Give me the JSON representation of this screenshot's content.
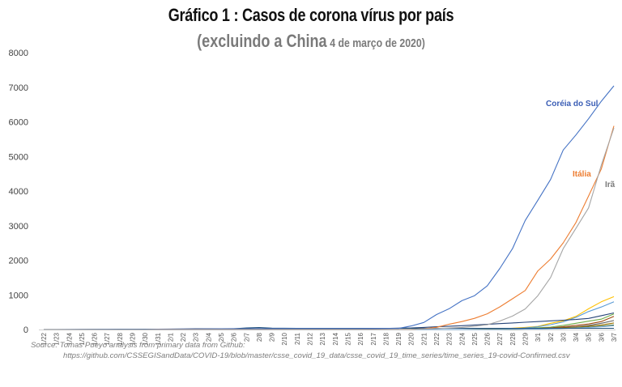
{
  "title": "Gráfico 1 : Casos de corona vírus por país",
  "subtitle_main": "(excluindo a China",
  "subtitle_date": "4 de março de 2020)",
  "source_line1": "Source: Tomas Pueyo analysis from primary data from Github:",
  "source_line2": "https://github.com/CSSEGISandData/COVID-19/blob/master/csse_covid_19_data/csse_covid_19_time_series/time_series_19-covid-Confirmed.csv",
  "chart_data": {
    "type": "line",
    "ylim": [
      0,
      8000
    ],
    "yticks": [
      0,
      1000,
      2000,
      3000,
      4000,
      5000,
      6000,
      7000,
      8000
    ],
    "grid": false,
    "categories": [
      "1/22",
      "1/23",
      "1/24",
      "1/25",
      "1/26",
      "1/27",
      "1/28",
      "1/29",
      "1/30",
      "1/31",
      "2/1",
      "2/2",
      "2/3",
      "2/4",
      "2/5",
      "2/6",
      "2/7",
      "2/8",
      "2/9",
      "2/10",
      "2/11",
      "2/12",
      "2/13",
      "2/14",
      "2/15",
      "2/16",
      "2/17",
      "2/18",
      "2/19",
      "2/20",
      "2/21",
      "2/22",
      "2/23",
      "2/24",
      "2/25",
      "2/26",
      "2/27",
      "2/28",
      "2/29",
      "3/1",
      "3/2",
      "3/3",
      "3/4",
      "3/5",
      "3/6",
      "3/7"
    ],
    "series": [
      {
        "name": "Coréia do Sul",
        "color": "#4472c4",
        "label_color": "#3a5db5",
        "values": [
          1,
          1,
          2,
          2,
          3,
          4,
          4,
          4,
          4,
          11,
          12,
          15,
          15,
          16,
          19,
          23,
          24,
          24,
          25,
          27,
          28,
          28,
          28,
          28,
          28,
          29,
          30,
          31,
          31,
          104,
          204,
          433,
          602,
          833,
          977,
          1261,
          1766,
          2337,
          3150,
          3736,
          4335,
          5186,
          5621,
          6088,
          6593,
          7041
        ]
      },
      {
        "name": "Itália",
        "color": "#ed7d31",
        "label_color": "#ed7d31",
        "values": [
          0,
          0,
          0,
          0,
          0,
          0,
          0,
          0,
          0,
          2,
          2,
          2,
          2,
          2,
          2,
          2,
          3,
          3,
          3,
          3,
          3,
          3,
          3,
          3,
          3,
          3,
          3,
          3,
          3,
          3,
          20,
          62,
          155,
          229,
          322,
          453,
          655,
          888,
          1128,
          1694,
          2036,
          2502,
          3089,
          3858,
          4636,
          5883
        ]
      },
      {
        "name": "Irã",
        "color": "#a5a5a5",
        "label_color": "#7a7a7a",
        "values": [
          0,
          0,
          0,
          0,
          0,
          0,
          0,
          0,
          0,
          0,
          0,
          0,
          0,
          0,
          0,
          0,
          0,
          0,
          0,
          0,
          0,
          0,
          0,
          0,
          0,
          0,
          0,
          0,
          2,
          5,
          18,
          28,
          43,
          61,
          95,
          139,
          245,
          388,
          593,
          978,
          1501,
          2336,
          2922,
          3513,
          4747,
          5823
        ]
      },
      {
        "color": "#ffc000",
        "values": [
          0,
          0,
          0,
          0,
          0,
          0,
          0,
          0,
          0,
          0,
          0,
          0,
          0,
          0,
          0,
          0,
          0,
          0,
          0,
          0,
          0,
          0,
          0,
          0,
          0,
          0,
          0,
          0,
          0,
          0,
          0,
          0,
          0,
          1,
          2,
          6,
          15,
          37,
          60,
          90,
          180,
          250,
          380,
          600,
          800,
          950
        ]
      },
      {
        "color": "#5b9bd5",
        "values": [
          0,
          0,
          0,
          0,
          0,
          0,
          0,
          0,
          0,
          0,
          0,
          0,
          0,
          0,
          0,
          0,
          0,
          0,
          0,
          0,
          0,
          0,
          0,
          0,
          0,
          0,
          0,
          0,
          0,
          0,
          0,
          0,
          0,
          1,
          3,
          5,
          9,
          20,
          45,
          80,
          140,
          220,
          350,
          520,
          650,
          800
        ]
      },
      {
        "color": "#70ad47",
        "values": [
          0,
          0,
          0,
          0,
          0,
          0,
          0,
          0,
          0,
          0,
          0,
          0,
          0,
          0,
          0,
          0,
          0,
          0,
          0,
          0,
          0,
          0,
          0,
          0,
          0,
          0,
          0,
          0,
          0,
          0,
          0,
          0,
          0,
          0,
          1,
          3,
          10,
          20,
          30,
          50,
          70,
          120,
          180,
          240,
          300,
          450
        ]
      },
      {
        "color": "#264478",
        "values": [
          2,
          2,
          2,
          4,
          4,
          5,
          7,
          7,
          9,
          12,
          15,
          17,
          20,
          20,
          22,
          25,
          25,
          25,
          26,
          26,
          26,
          26,
          26,
          26,
          26,
          26,
          26,
          30,
          40,
          45,
          60,
          80,
          95,
          110,
          130,
          150,
          170,
          190,
          210,
          230,
          250,
          270,
          290,
          320,
          400,
          480
        ]
      },
      {
        "color": "#9e480e",
        "values": [
          0,
          0,
          0,
          0,
          0,
          0,
          0,
          0,
          0,
          0,
          0,
          0,
          0,
          0,
          0,
          0,
          0,
          0,
          0,
          0,
          0,
          0,
          0,
          0,
          0,
          0,
          0,
          0,
          0,
          0,
          0,
          0,
          0,
          0,
          0,
          1,
          3,
          8,
          15,
          30,
          50,
          80,
          120,
          160,
          230,
          380
        ]
      },
      {
        "color": "#636363",
        "values": [
          0,
          0,
          0,
          0,
          0,
          0,
          0,
          0,
          0,
          0,
          0,
          0,
          0,
          0,
          0,
          0,
          0,
          0,
          0,
          0,
          0,
          0,
          0,
          0,
          0,
          0,
          0,
          0,
          0,
          0,
          0,
          0,
          0,
          1,
          2,
          4,
          8,
          14,
          20,
          30,
          40,
          55,
          80,
          120,
          180,
          260
        ]
      },
      {
        "color": "#997300",
        "values": [
          0,
          0,
          0,
          0,
          0,
          0,
          0,
          0,
          0,
          0,
          0,
          0,
          0,
          0,
          0,
          0,
          0,
          0,
          0,
          0,
          0,
          0,
          0,
          0,
          0,
          0,
          0,
          0,
          0,
          0,
          0,
          0,
          0,
          0,
          1,
          2,
          5,
          10,
          18,
          25,
          35,
          50,
          70,
          95,
          130,
          190
        ]
      },
      {
        "color": "#43682b",
        "values": [
          0,
          0,
          0,
          0,
          0,
          0,
          0,
          0,
          0,
          0,
          0,
          0,
          0,
          0,
          0,
          0,
          0,
          0,
          0,
          0,
          0,
          0,
          0,
          0,
          0,
          0,
          0,
          0,
          0,
          0,
          0,
          0,
          0,
          1,
          2,
          3,
          5,
          8,
          12,
          18,
          25,
          35,
          50,
          70,
          95,
          130
        ]
      },
      {
        "color": "#7cafdd",
        "values": [
          0,
          0,
          0,
          0,
          0,
          0,
          0,
          0,
          0,
          0,
          0,
          0,
          0,
          0,
          0,
          0,
          0,
          0,
          0,
          0,
          0,
          0,
          0,
          0,
          0,
          0,
          0,
          0,
          0,
          0,
          0,
          0,
          0,
          0,
          0,
          1,
          3,
          6,
          10,
          15,
          22,
          30,
          45,
          60,
          80,
          110
        ]
      },
      {
        "color": "#1f4e79",
        "values": [
          1,
          1,
          1,
          1,
          2,
          2,
          4,
          4,
          5,
          8,
          8,
          10,
          11,
          11,
          14,
          20,
          45,
          55,
          40,
          38,
          36,
          36,
          35,
          35,
          34,
          34,
          34,
          34,
          34,
          34,
          34,
          34,
          34,
          34,
          34,
          34,
          34,
          34,
          34,
          34,
          34,
          34,
          34,
          34,
          34,
          34
        ]
      }
    ]
  }
}
